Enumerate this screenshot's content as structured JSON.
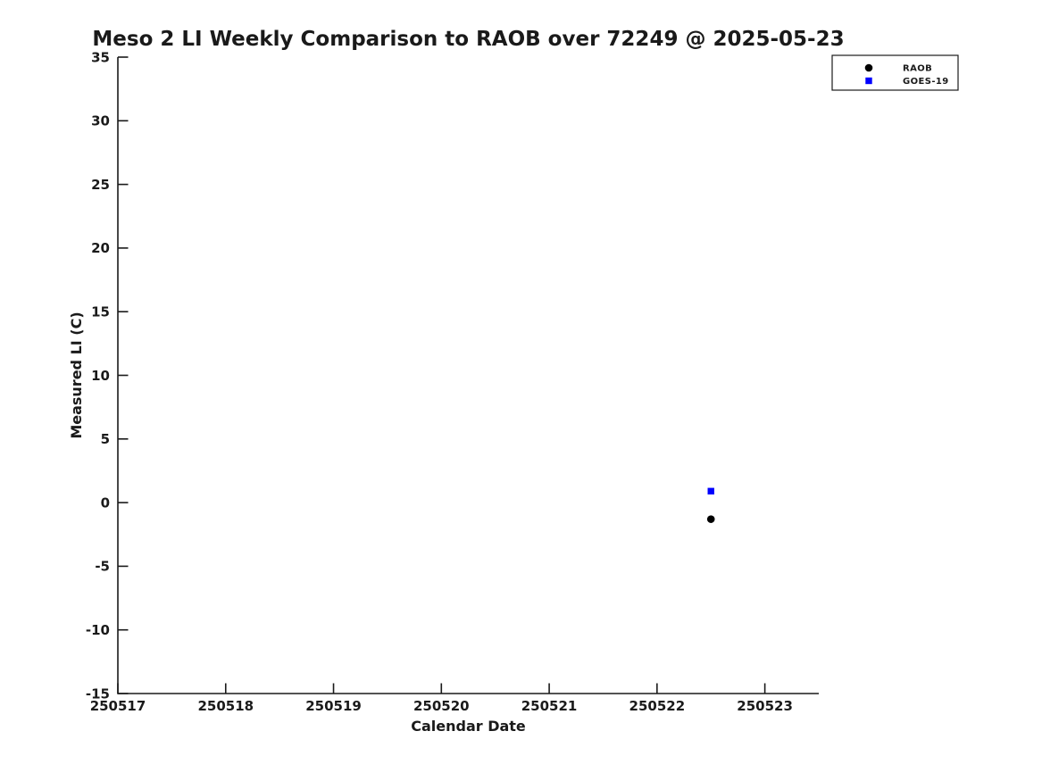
{
  "chart_data": {
    "type": "scatter",
    "title": "Meso 2 LI Weekly Comparison to RAOB over 72249 @ 2025-05-23",
    "xlabel": "Calendar Date",
    "ylabel": "Measured LI (C)",
    "xlim": [
      250517,
      250523.5
    ],
    "ylim": [
      -15,
      35
    ],
    "xticks": [
      250517,
      250518,
      250519,
      250520,
      250521,
      250522,
      250523
    ],
    "yticks": [
      -15,
      -10,
      -5,
      0,
      5,
      10,
      15,
      20,
      25,
      30,
      35
    ],
    "grid": false,
    "legend_position": "top-right-outside-plot",
    "text_color": "#1a1a1a",
    "background_color": "#ffffff",
    "series": [
      {
        "name": "RAOB",
        "marker": "circle",
        "color": "#000000",
        "points": [
          {
            "x": 250522.5,
            "y": -1.3
          }
        ]
      },
      {
        "name": "GOES-19",
        "marker": "square",
        "color": "#0000ff",
        "points": [
          {
            "x": 250522.5,
            "y": 0.9
          }
        ]
      }
    ]
  }
}
